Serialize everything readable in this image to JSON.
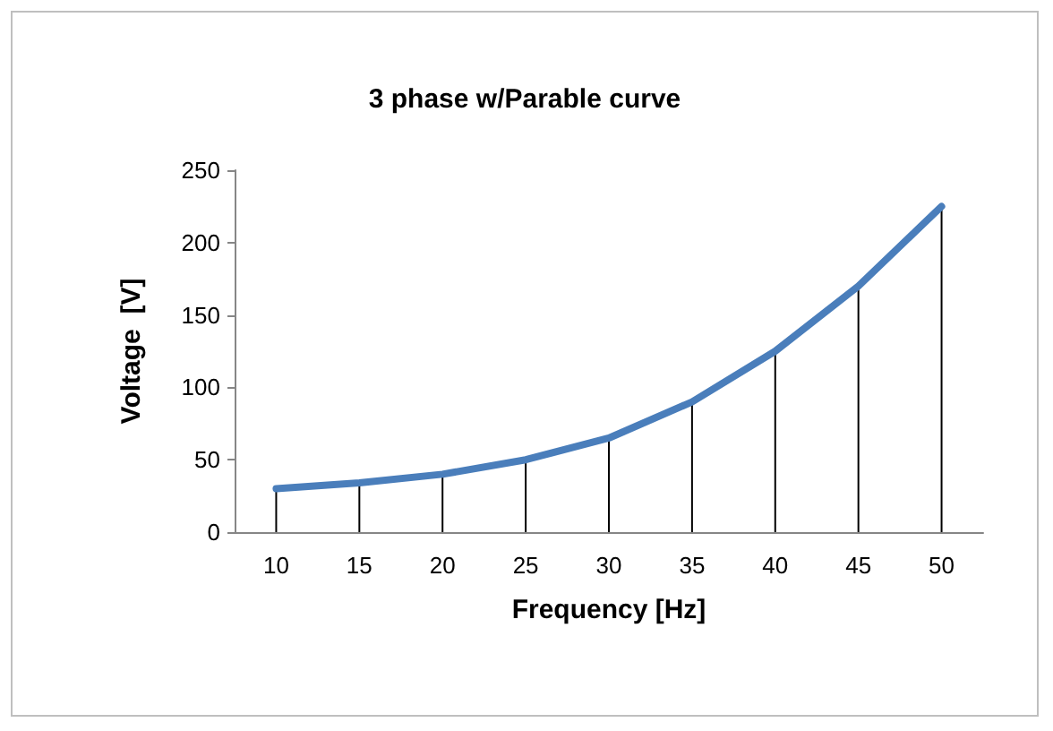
{
  "chart_data": {
    "type": "line",
    "title": "3 phase w/Parable curve",
    "xlabel": "Frequency [Hz]",
    "ylabel": "Voltage  [V]",
    "categories": [
      "10",
      "15",
      "20",
      "25",
      "30",
      "35",
      "40",
      "45",
      "50"
    ],
    "series": [
      {
        "color": "#4a7ebb",
        "values": [
          30,
          34,
          40,
          50,
          65,
          90,
          125,
          170,
          225
        ]
      },
      {
        "type": "bar",
        "color": "#000000",
        "values": [
          30,
          34,
          40,
          50,
          65,
          90,
          125,
          170,
          225
        ]
      }
    ],
    "ylim": [
      0,
      250
    ],
    "yticks": [
      0,
      50,
      100,
      150,
      200,
      250
    ],
    "marker": "none",
    "line_style": "solid"
  }
}
